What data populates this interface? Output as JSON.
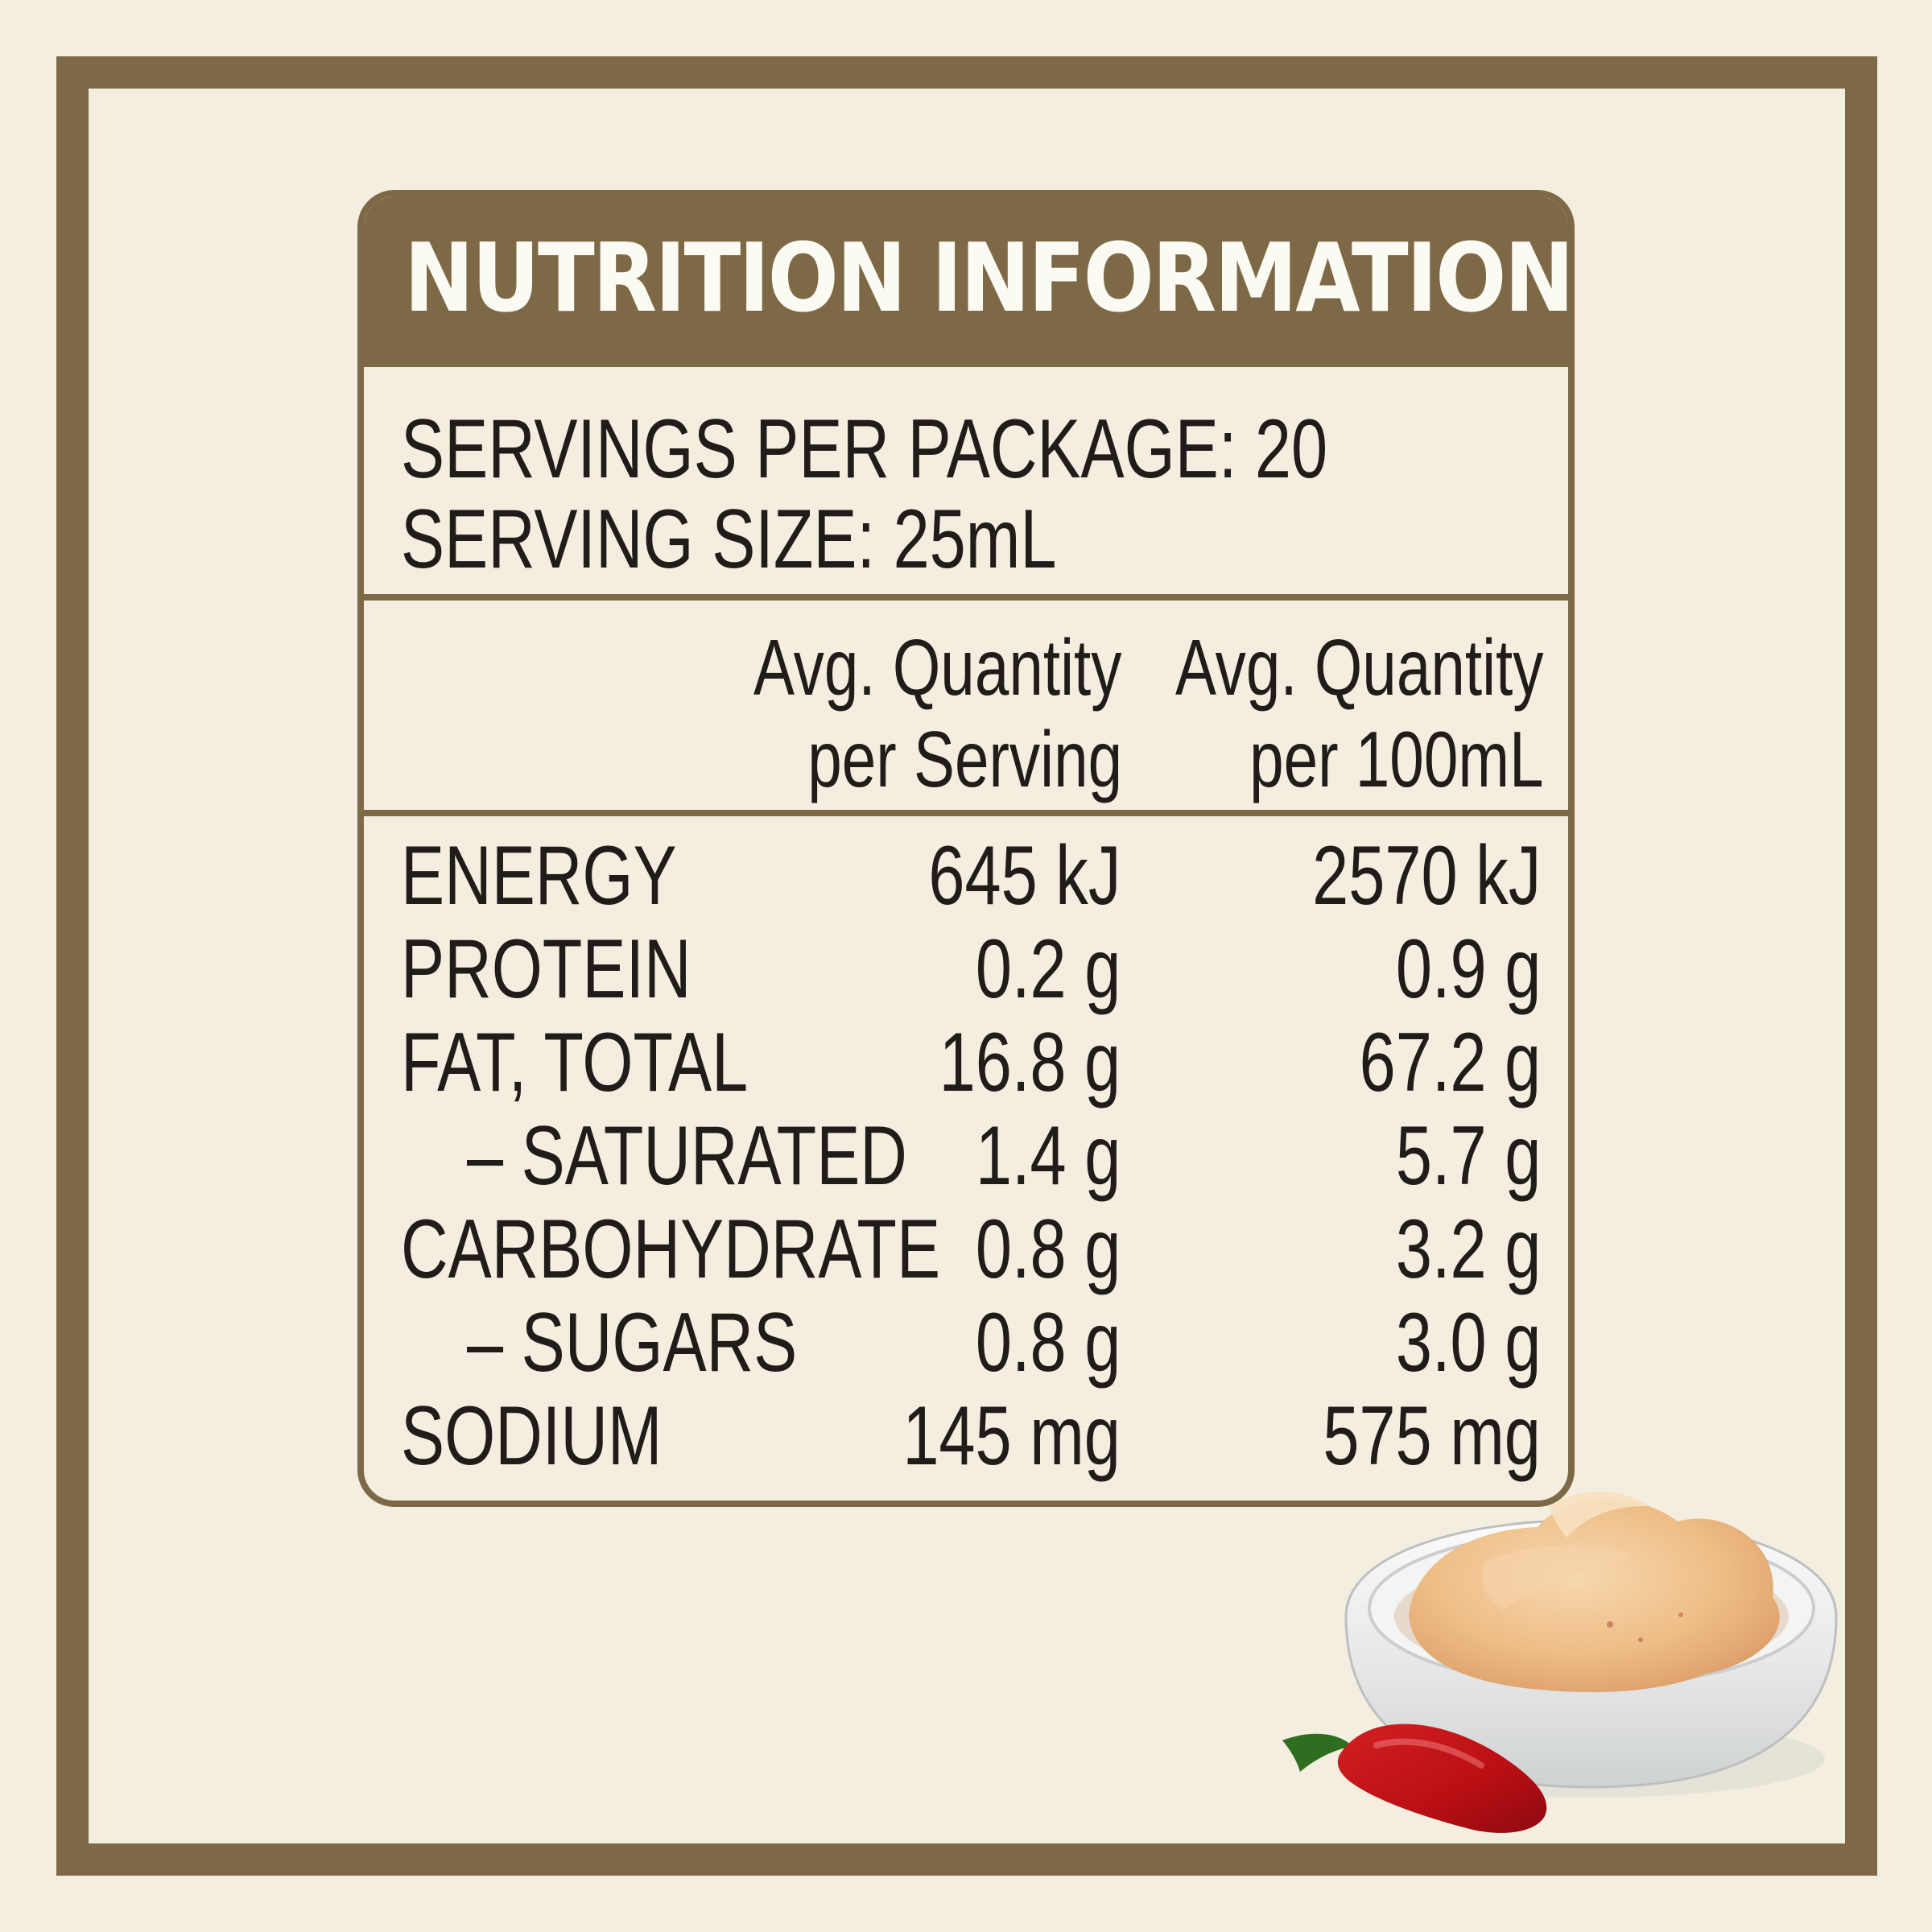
{
  "panel": {
    "title": "NUTRITION INFORMATION",
    "servings_per_package": "SERVINGS PER PACKAGE: 20",
    "serving_size": "SERVING SIZE: 25mL"
  },
  "columns": {
    "per_serving_line1": "Avg. Quantity",
    "per_serving_line2": "per Serving",
    "per_100ml_line1": "Avg. Quantity",
    "per_100ml_line2": "per 100mL"
  },
  "rows": [
    {
      "label": "ENERGY",
      "per_serving": "645 kJ",
      "per_100ml": "2570 kJ"
    },
    {
      "label": "PROTEIN",
      "per_serving": "0.2 g",
      "per_100ml": "0.9 g"
    },
    {
      "label": "FAT, TOTAL",
      "per_serving": "16.8 g",
      "per_100ml": "67.2 g"
    },
    {
      "label": "– SATURATED",
      "per_serving": "1.4 g",
      "per_100ml": "5.7 g"
    },
    {
      "label": "CARBOHYDRATE",
      "per_serving": "0.8 g",
      "per_100ml": "3.2 g"
    },
    {
      "label": "– SUGARS",
      "per_serving": "0.8 g",
      "per_100ml": "3.0 g"
    },
    {
      "label": "SODIUM",
      "per_serving": "145 mg",
      "per_100ml": "575 mg"
    }
  ],
  "colors": {
    "frame": "#7e6946",
    "background": "#f3eedf",
    "text": "#211c19"
  }
}
